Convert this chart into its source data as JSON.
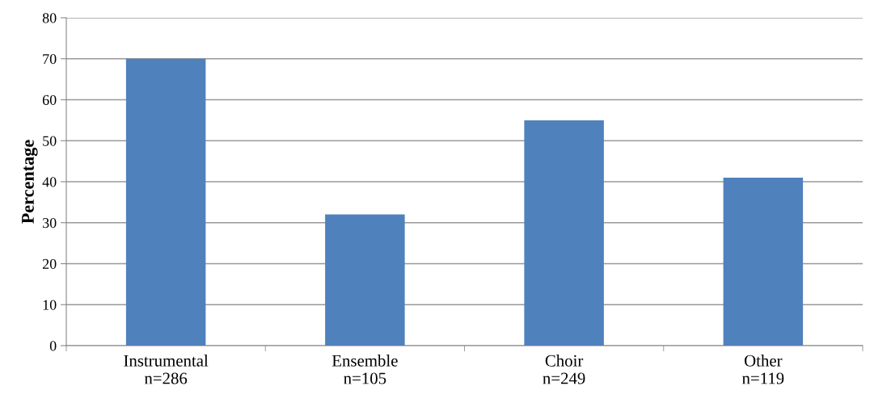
{
  "chart_data": {
    "type": "bar",
    "ylabel": "Percentage",
    "categories": [
      "Instrumental\nn=286",
      "Ensemble\nn=105",
      "Choir\nn=249",
      "Other\nn=119"
    ],
    "values": [
      70,
      32,
      55,
      41
    ],
    "color": "#4f81bd",
    "ylim": [
      0,
      80
    ],
    "yticks": [
      0,
      10,
      20,
      30,
      40,
      50,
      60,
      70,
      80
    ],
    "grid": "y",
    "legend": false
  }
}
